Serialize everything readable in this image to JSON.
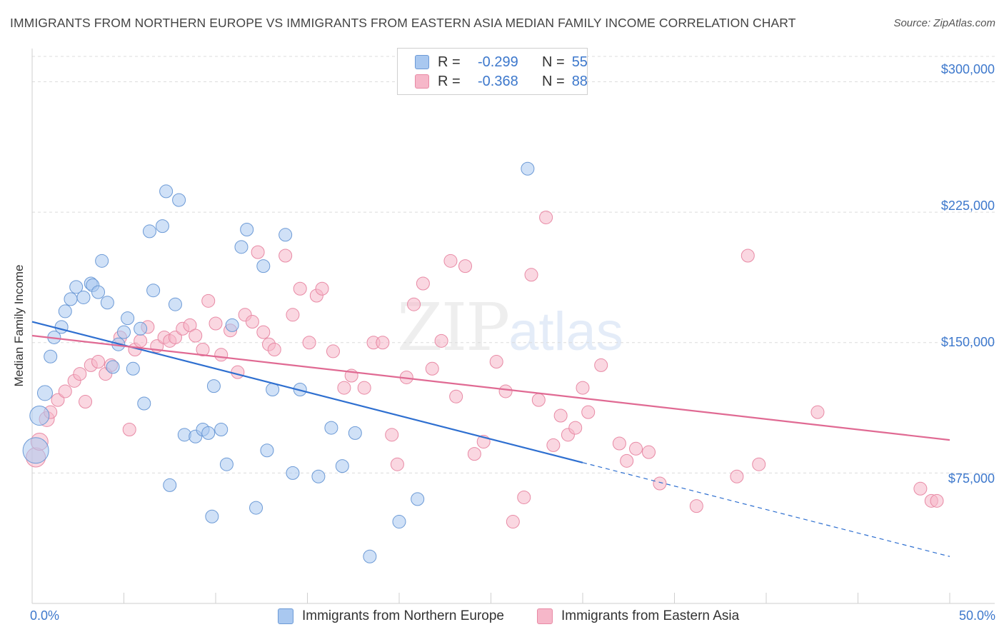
{
  "title": "IMMIGRANTS FROM NORTHERN EUROPE VS IMMIGRANTS FROM EASTERN ASIA MEDIAN FAMILY INCOME CORRELATION CHART",
  "source": "Source: ZipAtlas.com",
  "watermark": {
    "zip": "ZIP",
    "atlas": "atlas"
  },
  "legend": {
    "rows": [
      {
        "r_label": "R =",
        "r_value": "-0.299",
        "n_label": "N =",
        "n_value": "55"
      },
      {
        "r_label": "R =",
        "r_value": "-0.368",
        "n_label": "N =",
        "n_value": "88"
      }
    ]
  },
  "colors": {
    "blue_fill": "#a9c8f0",
    "blue_stroke": "#6c9ad6",
    "blue_line": "#2e6fd0",
    "pink_fill": "#f6b7c9",
    "pink_stroke": "#e88aa5",
    "pink_line": "#e06a93",
    "tick_text": "#3d78cc",
    "grid": "#dcdcdc"
  },
  "chart_data": {
    "type": "scatter",
    "title": "IMMIGRANTS FROM NORTHERN EUROPE VS IMMIGRANTS FROM EASTERN ASIA MEDIAN FAMILY INCOME CORRELATION CHART",
    "xlabel": "",
    "ylabel": "Median Family Income",
    "xlim": [
      0,
      50
    ],
    "ylim": [
      0,
      315000
    ],
    "x_tick_labels": [
      "0.0%",
      "50.0%"
    ],
    "y_ticks": [
      75000,
      150000,
      225000,
      300000
    ],
    "y_tick_labels": [
      "$75,000",
      "$150,000",
      "$225,000",
      "$300,000"
    ],
    "grid": true,
    "legend_position": "top-center",
    "series": [
      {
        "name": "Immigrants from Northern Europe",
        "color": "#a9c8f0",
        "points": [
          [
            0.2,
            88000,
            24
          ],
          [
            0.4,
            108000,
            18
          ],
          [
            0.7,
            121000,
            14
          ],
          [
            1.0,
            142000,
            12
          ],
          [
            1.2,
            153000,
            12
          ],
          [
            1.6,
            159000,
            12
          ],
          [
            1.8,
            168000,
            12
          ],
          [
            2.1,
            175000,
            12
          ],
          [
            2.4,
            182000,
            12
          ],
          [
            2.8,
            176000,
            12
          ],
          [
            3.2,
            184000,
            12
          ],
          [
            3.3,
            183000,
            12
          ],
          [
            3.6,
            179000,
            12
          ],
          [
            3.8,
            197000,
            12
          ],
          [
            4.1,
            173000,
            12
          ],
          [
            4.4,
            136000,
            12
          ],
          [
            4.7,
            149000,
            12
          ],
          [
            5.0,
            156000,
            12
          ],
          [
            5.2,
            164000,
            12
          ],
          [
            5.5,
            135000,
            12
          ],
          [
            5.9,
            158000,
            12
          ],
          [
            6.1,
            115000,
            12
          ],
          [
            6.4,
            214000,
            12
          ],
          [
            6.6,
            180000,
            12
          ],
          [
            7.1,
            217000,
            12
          ],
          [
            7.3,
            237000,
            12
          ],
          [
            7.5,
            68000,
            12
          ],
          [
            7.8,
            172000,
            12
          ],
          [
            8.0,
            232000,
            12
          ],
          [
            8.3,
            97000,
            12
          ],
          [
            8.9,
            96000,
            12
          ],
          [
            9.3,
            100000,
            12
          ],
          [
            9.6,
            98000,
            12
          ],
          [
            9.8,
            50000,
            12
          ],
          [
            9.9,
            125000,
            12
          ],
          [
            10.3,
            100000,
            12
          ],
          [
            10.6,
            80000,
            12
          ],
          [
            10.9,
            160000,
            12
          ],
          [
            11.4,
            205000,
            12
          ],
          [
            11.7,
            215000,
            12
          ],
          [
            12.2,
            55000,
            12
          ],
          [
            12.6,
            194000,
            12
          ],
          [
            12.8,
            88000,
            12
          ],
          [
            13.1,
            123000,
            12
          ],
          [
            13.8,
            212000,
            12
          ],
          [
            14.2,
            75000,
            12
          ],
          [
            14.6,
            123000,
            12
          ],
          [
            15.6,
            73000,
            12
          ],
          [
            16.3,
            101000,
            12
          ],
          [
            16.9,
            79000,
            12
          ],
          [
            17.6,
            98000,
            12
          ],
          [
            18.4,
            27000,
            12
          ],
          [
            20.0,
            47000,
            12
          ],
          [
            21.0,
            60000,
            12
          ],
          [
            27.0,
            250000,
            12
          ]
        ],
        "trend": {
          "x": [
            0,
            30
          ],
          "y": [
            162000,
            81000
          ],
          "dashed_to": [
            50,
            27000
          ]
        }
      },
      {
        "name": "Immigrants from Eastern Asia",
        "color": "#f6b7c9",
        "points": [
          [
            0.2,
            84000,
            18
          ],
          [
            0.4,
            93000,
            16
          ],
          [
            0.8,
            106000,
            14
          ],
          [
            1.0,
            110000,
            12
          ],
          [
            1.4,
            117000,
            12
          ],
          [
            1.8,
            122000,
            12
          ],
          [
            2.3,
            128000,
            12
          ],
          [
            2.6,
            132000,
            12
          ],
          [
            2.9,
            116000,
            12
          ],
          [
            3.2,
            137000,
            12
          ],
          [
            3.6,
            139000,
            12
          ],
          [
            4.0,
            132000,
            12
          ],
          [
            4.3,
            137000,
            12
          ],
          [
            4.8,
            153000,
            12
          ],
          [
            5.3,
            100000,
            12
          ],
          [
            5.6,
            146000,
            12
          ],
          [
            5.9,
            151000,
            12
          ],
          [
            6.3,
            159000,
            12
          ],
          [
            6.8,
            148000,
            12
          ],
          [
            7.2,
            153000,
            12
          ],
          [
            7.5,
            151000,
            12
          ],
          [
            7.8,
            153000,
            12
          ],
          [
            8.2,
            158000,
            12
          ],
          [
            8.6,
            160000,
            12
          ],
          [
            8.9,
            154000,
            12
          ],
          [
            9.3,
            146000,
            12
          ],
          [
            9.6,
            174000,
            12
          ],
          [
            10.0,
            161000,
            12
          ],
          [
            10.3,
            143000,
            12
          ],
          [
            10.8,
            157000,
            12
          ],
          [
            11.2,
            133000,
            12
          ],
          [
            11.6,
            166000,
            12
          ],
          [
            12.0,
            162000,
            12
          ],
          [
            12.3,
            202000,
            12
          ],
          [
            12.6,
            156000,
            12
          ],
          [
            12.9,
            149000,
            12
          ],
          [
            13.2,
            146000,
            12
          ],
          [
            13.8,
            200000,
            12
          ],
          [
            14.2,
            166000,
            12
          ],
          [
            14.6,
            181000,
            12
          ],
          [
            15.1,
            150000,
            12
          ],
          [
            15.5,
            177000,
            12
          ],
          [
            15.8,
            181000,
            12
          ],
          [
            16.4,
            145000,
            12
          ],
          [
            17.0,
            124000,
            12
          ],
          [
            17.4,
            131000,
            12
          ],
          [
            18.1,
            124000,
            12
          ],
          [
            18.6,
            150000,
            12
          ],
          [
            19.1,
            150000,
            12
          ],
          [
            19.6,
            97000,
            12
          ],
          [
            19.9,
            80000,
            12
          ],
          [
            20.4,
            130000,
            12
          ],
          [
            20.8,
            172000,
            12
          ],
          [
            21.3,
            184000,
            12
          ],
          [
            21.8,
            135000,
            12
          ],
          [
            22.3,
            151000,
            12
          ],
          [
            22.8,
            197000,
            12
          ],
          [
            23.1,
            119000,
            12
          ],
          [
            23.6,
            194000,
            12
          ],
          [
            24.1,
            86000,
            12
          ],
          [
            24.6,
            93000,
            12
          ],
          [
            25.3,
            139000,
            12
          ],
          [
            25.8,
            122000,
            12
          ],
          [
            26.2,
            47000,
            12
          ],
          [
            26.8,
            61000,
            12
          ],
          [
            27.2,
            189000,
            12
          ],
          [
            27.6,
            117000,
            12
          ],
          [
            28.0,
            222000,
            12
          ],
          [
            28.4,
            91000,
            12
          ],
          [
            28.8,
            108000,
            12
          ],
          [
            29.2,
            97000,
            12
          ],
          [
            29.6,
            101000,
            12
          ],
          [
            30.0,
            124000,
            12
          ],
          [
            30.3,
            110000,
            12
          ],
          [
            31.0,
            137000,
            12
          ],
          [
            32.0,
            92000,
            12
          ],
          [
            32.4,
            82000,
            12
          ],
          [
            32.9,
            89000,
            12
          ],
          [
            33.6,
            87000,
            12
          ],
          [
            34.2,
            69000,
            12
          ],
          [
            36.2,
            56000,
            12
          ],
          [
            38.4,
            73000,
            12
          ],
          [
            39.0,
            200000,
            12
          ],
          [
            39.6,
            80000,
            12
          ],
          [
            42.8,
            110000,
            12
          ],
          [
            48.4,
            66000,
            12
          ],
          [
            49.0,
            59000,
            12
          ],
          [
            49.3,
            59000,
            12
          ]
        ],
        "trend": {
          "x": [
            0,
            50
          ],
          "y": [
            154000,
            94000
          ]
        }
      }
    ]
  }
}
